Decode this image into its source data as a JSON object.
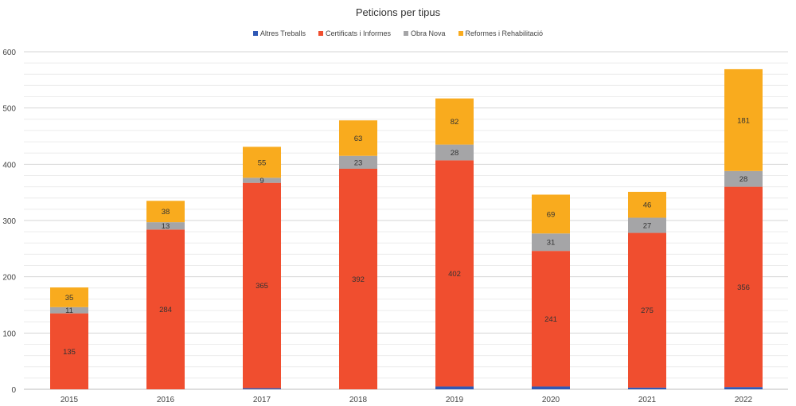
{
  "chart_data": {
    "type": "bar",
    "stacked": true,
    "title": "Peticions per tipus",
    "xlabel": "",
    "ylabel": "",
    "categories": [
      "2015",
      "2016",
      "2017",
      "2018",
      "2019",
      "2020",
      "2021",
      "2022"
    ],
    "ylim": [
      0,
      600
    ],
    "yticks": [
      0,
      100,
      200,
      300,
      400,
      500,
      600
    ],
    "grid": true,
    "legend_position": "top",
    "series": [
      {
        "name": "Altres Treballs",
        "color": "#2f58b5",
        "values": [
          0,
          0,
          2,
          0,
          5,
          5,
          3,
          4
        ],
        "labels": [
          "",
          "",
          "",
          "",
          "",
          "",
          "",
          ""
        ]
      },
      {
        "name": "Certificats i Informes",
        "color": "#f04e2f",
        "values": [
          135,
          284,
          365,
          392,
          402,
          241,
          275,
          356
        ],
        "labels": [
          "135",
          "284",
          "365",
          "392",
          "402",
          "241",
          "275",
          "356"
        ]
      },
      {
        "name": "Obra Nova",
        "color": "#a5a5a7",
        "values": [
          11,
          13,
          9,
          23,
          28,
          31,
          27,
          28
        ],
        "labels": [
          "11",
          "13",
          "9",
          "23",
          "28",
          "31",
          "27",
          "28"
        ]
      },
      {
        "name": "Reformes i Rehabilitació",
        "color": "#f9ab1e",
        "values": [
          35,
          38,
          55,
          63,
          82,
          69,
          46,
          181
        ],
        "labels": [
          "35",
          "38",
          "55",
          "63",
          "82",
          "69",
          "46",
          "181"
        ]
      }
    ]
  }
}
